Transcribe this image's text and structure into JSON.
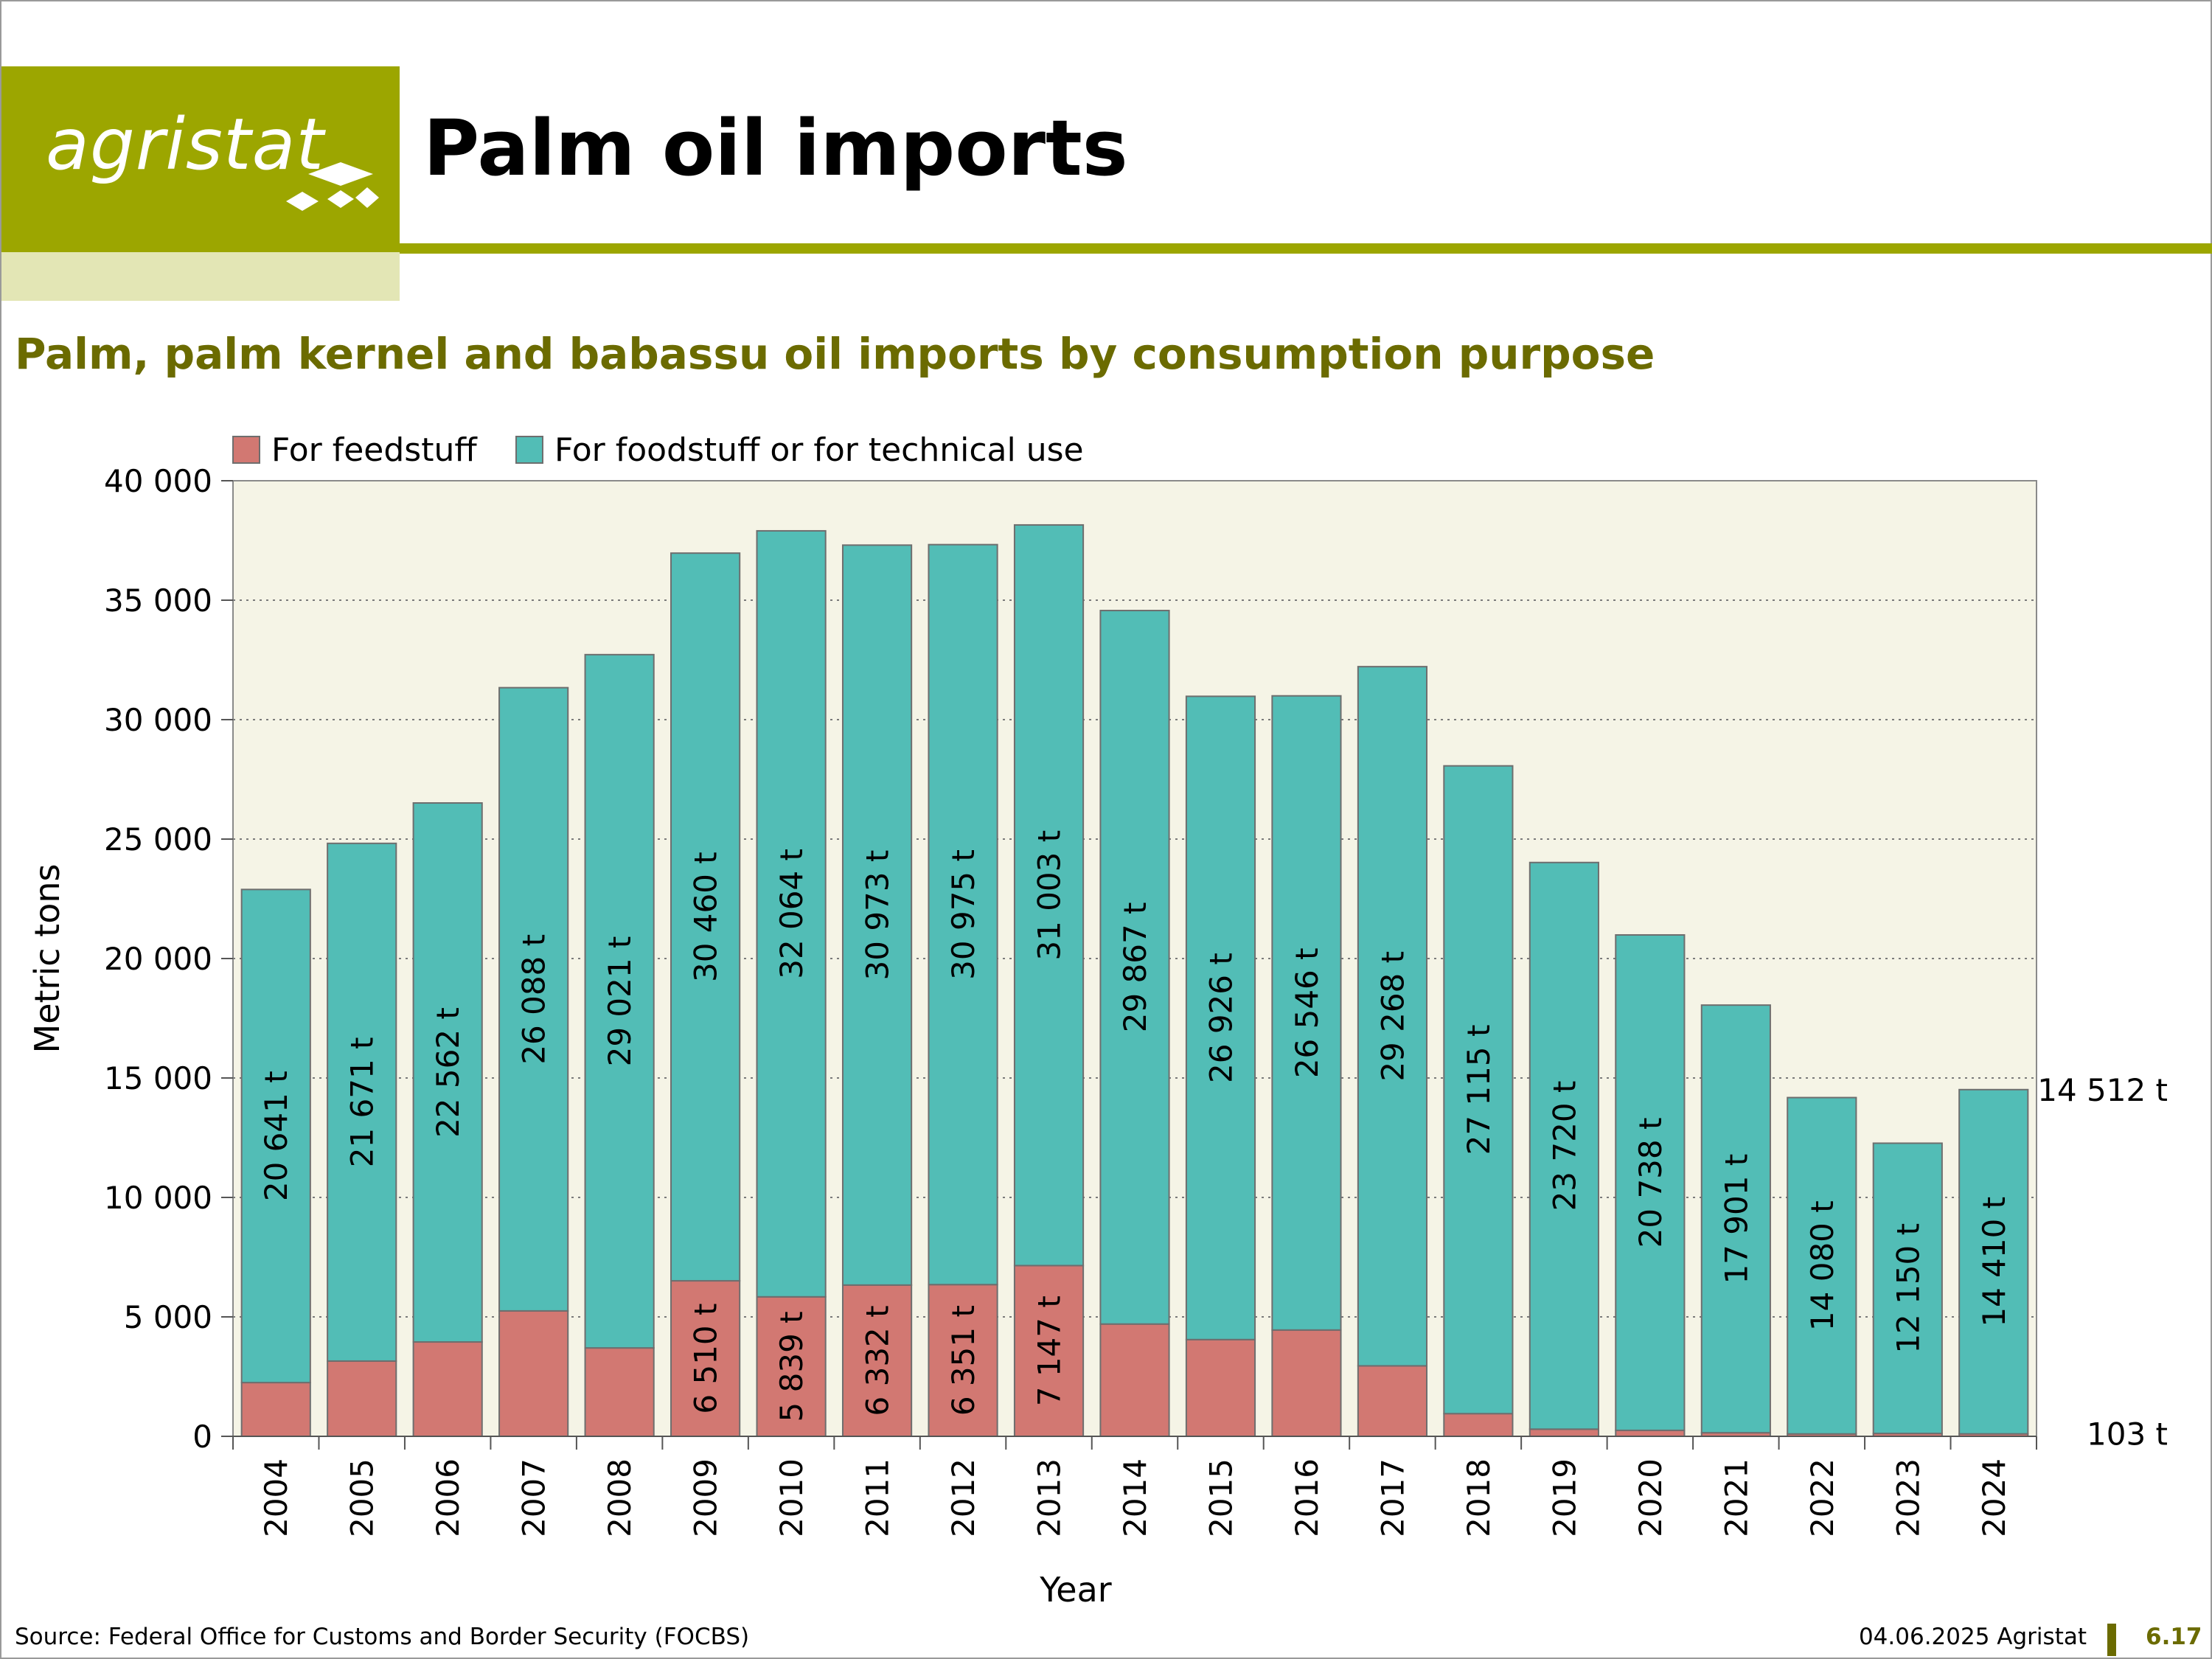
{
  "header": {
    "logo_text": "agristat",
    "title": "Palm oil imports",
    "subtitle": "Palm, palm kernel and babassu oil imports by consumption purpose"
  },
  "colors": {
    "brand": "#9ca600",
    "brand_light": "#e3e6b5",
    "subtitle": "#6b6b00",
    "feed": "#d27872",
    "food": "#52bdb6",
    "plot_bg": "#f5f4e6"
  },
  "chart_data": {
    "type": "bar",
    "stacked": true,
    "categories": [
      "2004",
      "2005",
      "2006",
      "2007",
      "2008",
      "2009",
      "2010",
      "2011",
      "2012",
      "2013",
      "2014",
      "2015",
      "2016",
      "2017",
      "2018",
      "2019",
      "2020",
      "2021",
      "2022",
      "2023",
      "2024"
    ],
    "series": [
      {
        "name": "For feedstuff",
        "color": "#d27872",
        "values": [
          2250,
          3150,
          3950,
          5250,
          3700,
          6510,
          5839,
          6332,
          6351,
          7147,
          4700,
          4050,
          4450,
          2950,
          950,
          300,
          250,
          150,
          100,
          120,
          103
        ],
        "labels": [
          "",
          "",
          "",
          "",
          "",
          "6 510 t",
          "5 839 t",
          "6 332 t",
          "6 351 t",
          "7 147 t",
          "",
          "",
          "",
          "",
          "",
          "",
          "",
          "",
          "",
          "",
          ""
        ]
      },
      {
        "name": "For foodstuff or for technical use",
        "color": "#52bdb6",
        "values": [
          20641,
          21671,
          22562,
          26088,
          29021,
          30460,
          32064,
          30973,
          30975,
          31003,
          29867,
          26926,
          26546,
          29268,
          27115,
          23720,
          20738,
          17901,
          14080,
          12150,
          14410
        ],
        "labels": [
          "20 641 t",
          "21 671 t",
          "22 562 t",
          "26 088 t",
          "29 021 t",
          "30 460 t",
          "32 064 t",
          "30 973 t",
          "30 975 t",
          "31 003 t",
          "29 867 t",
          "26 926 t",
          "26 546 t",
          "29 268 t",
          "27 115 t",
          "23 720 t",
          "20 738 t",
          "17 901 t",
          "14 080 t",
          "12 150 t",
          "14 410 t"
        ]
      }
    ],
    "annotations": [
      {
        "text": "14 512 t",
        "value": 14512
      },
      {
        "text": "103 t",
        "value": 103
      }
    ],
    "ylim": [
      0,
      40000
    ],
    "yticks": [
      {
        "value": 0,
        "label": "0"
      },
      {
        "value": 5000,
        "label": "5 000"
      },
      {
        "value": 10000,
        "label": "10 000"
      },
      {
        "value": 15000,
        "label": "15 000"
      },
      {
        "value": 20000,
        "label": "20 000"
      },
      {
        "value": 25000,
        "label": "25 000"
      },
      {
        "value": 30000,
        "label": "30 000"
      },
      {
        "value": 35000,
        "label": "35 000"
      },
      {
        "value": 40000,
        "label": "40 000"
      }
    ],
    "xlabel": "Year",
    "ylabel": "Metric tons",
    "grid": "horizontal-dotted",
    "legend_position": "top-left"
  },
  "footer": {
    "source": "Source: Federal Office for Customs and Border Security (FOCBS)",
    "date": "04.06.2025 Agristat",
    "page": "6.17"
  }
}
